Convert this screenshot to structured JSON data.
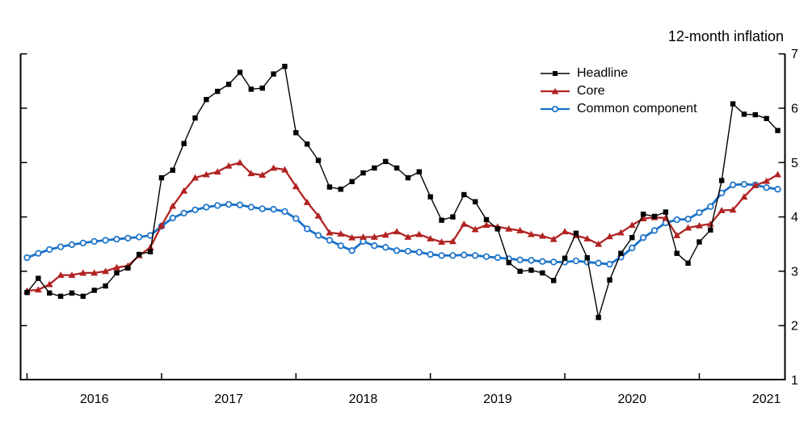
{
  "title": {
    "text": "12-month inflation"
  },
  "legend": {
    "items": [
      {
        "label": "Headline"
      },
      {
        "label": "Core"
      },
      {
        "label": "Common component"
      }
    ]
  },
  "axes": {
    "y_right_labels": [
      "7",
      "6",
      "5",
      "4",
      "3",
      "2",
      "1"
    ],
    "x_year_labels": [
      "2016",
      "2017",
      "2018",
      "2019",
      "2020",
      "2021"
    ]
  },
  "colors": {
    "headline": "#000000",
    "core": "#b22222",
    "common_component": "#1a72c8",
    "axis": "#000000",
    "background": "#ffffff"
  },
  "chart_data": {
    "type": "line",
    "title": "12-month inflation",
    "xlabel": "",
    "ylabel": "",
    "frequency": "monthly",
    "ylim": [
      1,
      7
    ],
    "y_ticks": [
      1,
      2,
      3,
      4,
      5,
      6,
      7
    ],
    "x_tick_years": [
      "2016",
      "2017",
      "2018",
      "2019",
      "2020",
      "2021"
    ],
    "grid": false,
    "legend_position": "inside-top-right",
    "x": [
      "2016-01",
      "2016-02",
      "2016-03",
      "2016-04",
      "2016-05",
      "2016-06",
      "2016-07",
      "2016-08",
      "2016-09",
      "2016-10",
      "2016-11",
      "2016-12",
      "2017-01",
      "2017-02",
      "2017-03",
      "2017-04",
      "2017-05",
      "2017-06",
      "2017-07",
      "2017-08",
      "2017-09",
      "2017-10",
      "2017-11",
      "2017-12",
      "2018-01",
      "2018-02",
      "2018-03",
      "2018-04",
      "2018-05",
      "2018-06",
      "2018-07",
      "2018-08",
      "2018-09",
      "2018-10",
      "2018-11",
      "2018-12",
      "2019-01",
      "2019-02",
      "2019-03",
      "2019-04",
      "2019-05",
      "2019-06",
      "2019-07",
      "2019-08",
      "2019-09",
      "2019-10",
      "2019-11",
      "2019-12",
      "2020-01",
      "2020-02",
      "2020-03",
      "2020-04",
      "2020-05",
      "2020-06",
      "2020-07",
      "2020-08",
      "2020-09",
      "2020-10",
      "2020-11",
      "2020-12",
      "2021-01",
      "2021-02",
      "2021-03",
      "2021-04",
      "2021-05",
      "2021-06",
      "2021-07",
      "2021-08"
    ],
    "series": [
      {
        "name": "Headline",
        "color": "#000000",
        "marker": "filled-square",
        "line_width": 1.4,
        "values": [
          2.61,
          2.87,
          2.6,
          2.54,
          2.6,
          2.54,
          2.65,
          2.73,
          2.97,
          3.06,
          3.31,
          3.36,
          4.72,
          4.86,
          5.35,
          5.82,
          6.16,
          6.31,
          6.44,
          6.66,
          6.35,
          6.37,
          6.63,
          6.77,
          5.55,
          5.34,
          5.04,
          4.55,
          4.51,
          4.65,
          4.81,
          4.9,
          5.02,
          4.9,
          4.72,
          4.83,
          4.37,
          3.94,
          4.0,
          4.41,
          4.28,
          3.95,
          3.78,
          3.16,
          3.0,
          3.02,
          2.97,
          2.83,
          3.24,
          3.7,
          3.25,
          2.15,
          2.84,
          3.33,
          3.62,
          4.05,
          4.01,
          4.09,
          3.33,
          3.15,
          3.54,
          3.76,
          4.67,
          6.08,
          5.89,
          5.88,
          5.81,
          5.59
        ]
      },
      {
        "name": "Core",
        "color": "#b22222",
        "marker": "filled-triangle",
        "line_width": 2.3,
        "values": [
          2.64,
          2.66,
          2.76,
          2.93,
          2.93,
          2.97,
          2.97,
          3.0,
          3.07,
          3.1,
          3.29,
          3.44,
          3.84,
          4.2,
          4.48,
          4.72,
          4.78,
          4.83,
          4.94,
          5.0,
          4.8,
          4.77,
          4.9,
          4.87,
          4.56,
          4.27,
          4.02,
          3.71,
          3.69,
          3.62,
          3.63,
          3.63,
          3.67,
          3.73,
          3.63,
          3.68,
          3.6,
          3.54,
          3.55,
          3.87,
          3.77,
          3.85,
          3.82,
          3.78,
          3.75,
          3.68,
          3.65,
          3.59,
          3.73,
          3.66,
          3.6,
          3.5,
          3.64,
          3.71,
          3.85,
          3.97,
          3.99,
          3.98,
          3.66,
          3.8,
          3.84,
          3.87,
          4.12,
          4.13,
          4.37,
          4.58,
          4.66,
          4.78
        ]
      },
      {
        "name": "Common component",
        "color": "#1a72c8",
        "marker": "open-circle",
        "line_width": 2.8,
        "values": [
          3.25,
          3.33,
          3.4,
          3.45,
          3.49,
          3.52,
          3.55,
          3.57,
          3.59,
          3.61,
          3.63,
          3.66,
          3.83,
          3.98,
          4.07,
          4.13,
          4.18,
          4.21,
          4.23,
          4.22,
          4.18,
          4.15,
          4.14,
          4.1,
          3.97,
          3.78,
          3.66,
          3.57,
          3.47,
          3.38,
          3.55,
          3.47,
          3.44,
          3.38,
          3.37,
          3.35,
          3.31,
          3.29,
          3.29,
          3.3,
          3.29,
          3.27,
          3.25,
          3.23,
          3.21,
          3.2,
          3.18,
          3.17,
          3.17,
          3.19,
          3.17,
          3.15,
          3.13,
          3.26,
          3.43,
          3.62,
          3.75,
          3.89,
          3.95,
          3.96,
          4.08,
          4.19,
          4.44,
          4.59,
          4.6,
          4.59,
          4.54,
          4.51
        ]
      }
    ]
  }
}
